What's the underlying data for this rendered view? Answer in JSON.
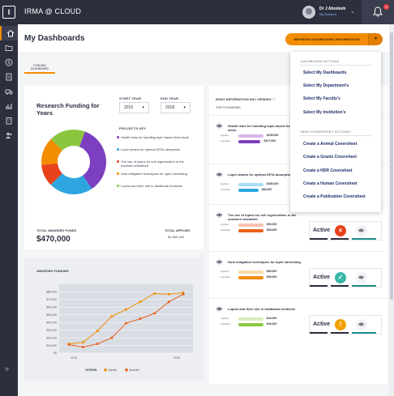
{
  "header": {
    "brand_glyph": "I",
    "app_title": "IRMA @ CLOUD",
    "user_name": "Dr J Abodeeb",
    "user_link": "My Account",
    "notification_count": "4"
  },
  "page": {
    "title": "My Dashboards",
    "refresh_label": "REFRESH DASHBOARD INFORMATION",
    "tab_label": "FUNDING DASHBOARD"
  },
  "funding": {
    "title": "Research Funding for Years",
    "start_year_label": "START YEAR",
    "start_year_value": "2015",
    "end_year_label": "END YEAR",
    "end_year_value": "2018",
    "projects_key_label": "PROJECTS KEY",
    "projects": [
      {
        "label": "Health risks for handling lupin based feed stock",
        "color": "#7b3fbf",
        "share": 35
      },
      {
        "label": "Lupin strains for optimal DF34 absorption",
        "color": "#2fa5e0",
        "share": 22
      },
      {
        "label": "The use of lupins for soil regeneration in the southern wheatbelt",
        "color": "#e8421a",
        "share": 11
      },
      {
        "label": "Dust mitigation techniques for lupin harvesting",
        "color": "#f28c00",
        "share": 14
      },
      {
        "label": "Lupins and their role in traditional medicine",
        "color": "#8cc63f",
        "share": 18
      }
    ],
    "total_awarded_label": "TOTAL AWARDED FUNDS",
    "total_awarded_value": "$470,000",
    "total_applied_label": "TOTAL APPLIED",
    "total_applied_value": "$1,365,300"
  },
  "chart_data": {
    "type": "line",
    "title": "AWARDED FUNDING",
    "x_ticks": [
      "2015",
      "2018"
    ],
    "y_ticks": [
      "$80,000",
      "$70,000",
      "$60,000",
      "$50,000",
      "$40,000",
      "$30,000",
      "$20,000",
      "$10,000",
      "$0"
    ],
    "ylim": [
      0,
      90000
    ],
    "legend": [
      "Applied",
      "Awarded"
    ],
    "legend_label": "LEGEND",
    "series": [
      {
        "name": "Applied",
        "color": "#f28c00",
        "values": [
          12000,
          14000,
          29000,
          48000,
          57000,
          67000,
          78000,
          77000,
          79000
        ]
      },
      {
        "name": "Awarded",
        "color": "#e8601a",
        "values": [
          11000,
          8000,
          12000,
          20000,
          39000,
          45000,
          52000,
          67000,
          77000
        ]
      }
    ]
  },
  "info": {
    "title": "WHAT INFORMATION AM I VIEWING",
    "top5_label": "TOP 5 FUNDING",
    "applied_label": "Applied",
    "awarded_label": "Awarded",
    "projects": [
      {
        "title": "Health risks for handling lupin based feed stock",
        "applied": "$235,000",
        "awarded": "$207,000",
        "applied_frac": 0.55,
        "awarded_frac": 0.49,
        "applied_color": "#d9b6f0",
        "awarded_color": "#7b3fbf",
        "status": ""
      },
      {
        "title": "Lupin strains for optimal DF34 absorption",
        "applied": "$300,000",
        "awarded": "$84,000",
        "applied_frac": 0.55,
        "awarded_frac": 0.44,
        "applied_color": "#a6dcf6",
        "awarded_color": "#2fa5e0",
        "status": ""
      },
      {
        "title": "The use of lupins for soil regeneration in the southern wheatbelt",
        "applied": "$90,000",
        "awarded": "$80,000",
        "applied_frac": 0.55,
        "awarded_frac": 0.55,
        "applied_color": "#f8c2b0",
        "awarded_color": "#e8601a",
        "status": "Active",
        "status_icon": "×",
        "status_color": "#e8421a"
      },
      {
        "title": "Dust mitigation techniques for lupin harvesting",
        "applied": "$80,000",
        "awarded": "$55,000",
        "applied_frac": 0.55,
        "awarded_frac": 0.55,
        "applied_color": "#fbd9a8",
        "awarded_color": "#f28c00",
        "status": "Active",
        "status_icon": "✓",
        "status_color": "#3bb7a8"
      },
      {
        "title": "Lupins and their role in traditional medicine",
        "applied": "$44,000",
        "awarded": "$40,000",
        "applied_frac": 0.55,
        "awarded_frac": 0.55,
        "applied_color": "#d7eeb9",
        "awarded_color": "#8cc63f",
        "status": "Active",
        "status_icon": "!",
        "status_color": "#f2a200"
      }
    ]
  },
  "menu": {
    "section1": "DASHBOARD ACTIONS",
    "items1": [
      "Select My Dashboards",
      "Select My Department's",
      "Select My Faculty's",
      "Select My Institution's"
    ],
    "section2": "NEW COVERSHEET ACTIONS",
    "items2": [
      "Create a Animal Coversheet",
      "Create a Grants Coversheet",
      "Create a HDR Coversheet",
      "Create a Human Coversheet",
      "Create a Publication Coversheet"
    ]
  },
  "nav": {
    "items": [
      "home-icon",
      "folder-icon",
      "dollar-icon",
      "document-icon",
      "truck-icon",
      "bar-chart-icon",
      "building-icon",
      "people-icon"
    ]
  }
}
